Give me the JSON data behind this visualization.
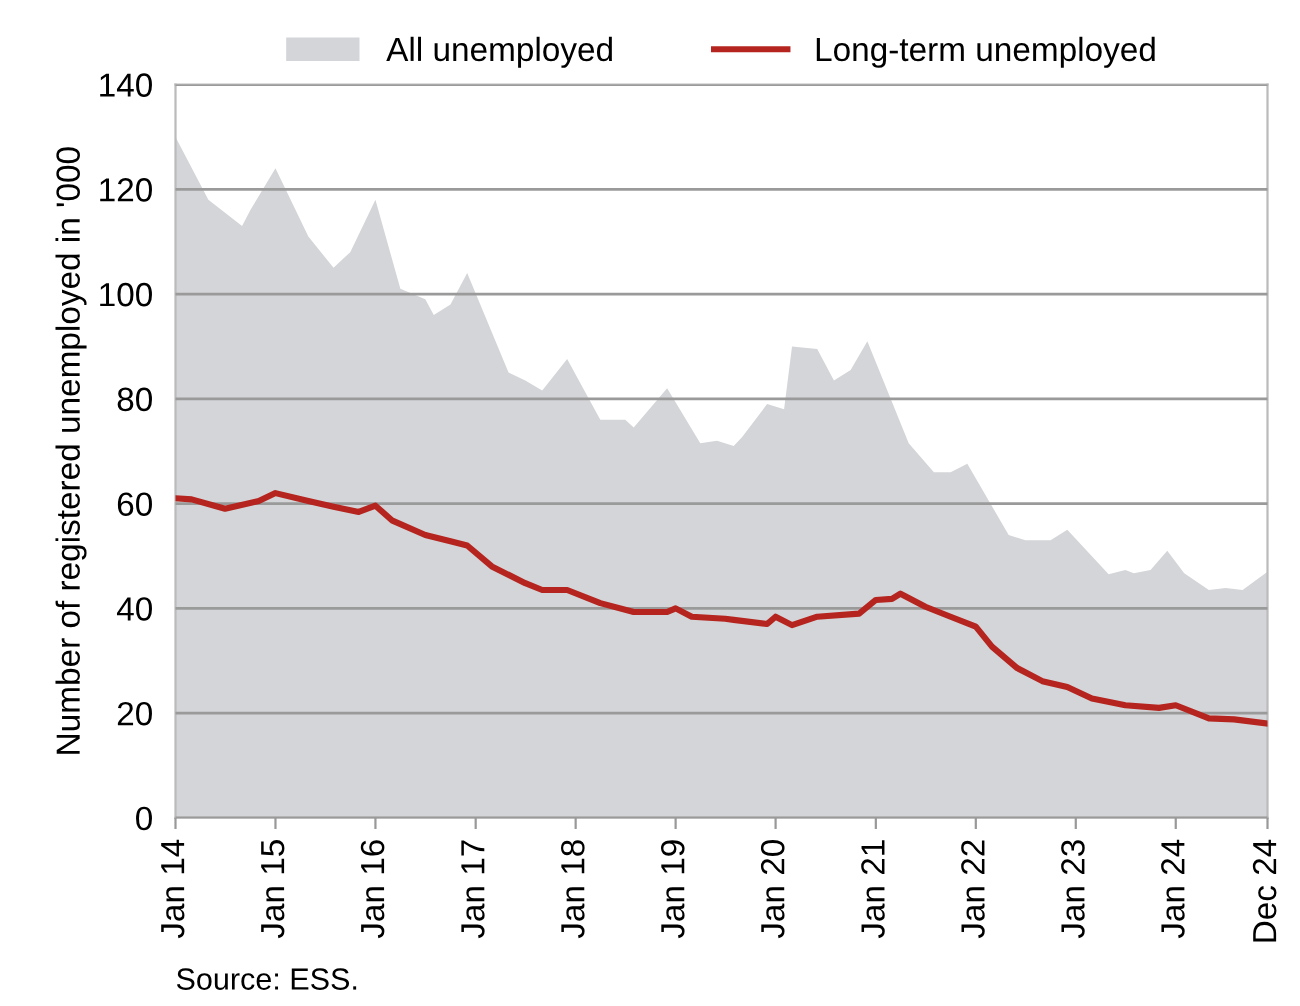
{
  "chart_data": {
    "type": "area",
    "ylabel": "Number of registered unemployed in '000",
    "series": [
      {
        "name": "All unemployed",
        "color": "#d4d5d8",
        "x": [
          "2014-01",
          "2014-05",
          "2014-09",
          "2014-10",
          "2015-01",
          "2015-05",
          "2015-08",
          "2015-10",
          "2016-01",
          "2016-04",
          "2016-07",
          "2016-08",
          "2016-10",
          "2016-12",
          "2017-05",
          "2017-07",
          "2017-09",
          "2017-12",
          "2018-04",
          "2018-07",
          "2018-08",
          "2018-12",
          "2019-04",
          "2019-06",
          "2019-08",
          "2019-09",
          "2019-12",
          "2020-02",
          "2020-03",
          "2020-06",
          "2020-08",
          "2020-10",
          "2020-12",
          "2021-05",
          "2021-08",
          "2021-10",
          "2021-12",
          "2022-05",
          "2022-07",
          "2022-10",
          "2022-12",
          "2023-05",
          "2023-07",
          "2023-08",
          "2023-10",
          "2023-12",
          "2024-02",
          "2024-05",
          "2024-07",
          "2024-09",
          "2024-12"
        ],
        "values": [
          130,
          118,
          113,
          116,
          124,
          111,
          105,
          108,
          118,
          101,
          99,
          96,
          98,
          104,
          85,
          83.5,
          81.6,
          87.6,
          76,
          76,
          74.5,
          82,
          71.5,
          72,
          71,
          72.7,
          79,
          78,
          90,
          89.5,
          83.5,
          85.5,
          91,
          71.5,
          66,
          66,
          67.6,
          54,
          53,
          53,
          55,
          46.5,
          47.3,
          46.7,
          47.3,
          51,
          46.7,
          43.5,
          43.9,
          43.5,
          47
        ]
      },
      {
        "name": "Long-term unemployed",
        "type": "line",
        "color": "#b5241e",
        "x": [
          "2014-01",
          "2014-03",
          "2014-07",
          "2014-11",
          "2015-01",
          "2015-05",
          "2015-08",
          "2015-11",
          "2016-01",
          "2016-03",
          "2016-07",
          "2016-10",
          "2016-12",
          "2017-03",
          "2017-07",
          "2017-09",
          "2017-12",
          "2018-04",
          "2018-08",
          "2018-12",
          "2019-01",
          "2019-03",
          "2019-07",
          "2019-08",
          "2019-12",
          "2020-01",
          "2020-03",
          "2020-06",
          "2020-11",
          "2021-01",
          "2021-03",
          "2021-04",
          "2021-07",
          "2021-10",
          "2022-01",
          "2022-03",
          "2022-06",
          "2022-09",
          "2022-12",
          "2023-03",
          "2023-07",
          "2023-11",
          "2024-01",
          "2024-05",
          "2024-08",
          "2024-12"
        ],
        "values": [
          61,
          60.8,
          59,
          60.5,
          62,
          60.5,
          59.4,
          58.4,
          59.6,
          56.8,
          54,
          52.8,
          52,
          48,
          44.8,
          43.5,
          43.5,
          41,
          39.3,
          39.3,
          40,
          38.4,
          38,
          37.8,
          37,
          38.4,
          36.8,
          38.4,
          39,
          41.6,
          41.8,
          42.8,
          40.3,
          38.4,
          36.5,
          32.7,
          28.6,
          26.1,
          25,
          22.8,
          21.5,
          21,
          21.5,
          19,
          18.8,
          18
        ]
      }
    ],
    "xlim": [
      "2014-01",
      "2024-12"
    ],
    "xticks": [
      {
        "value": "2014-01",
        "label": "Jan 14"
      },
      {
        "value": "2015-01",
        "label": "Jan 15"
      },
      {
        "value": "2016-01",
        "label": "Jan 16"
      },
      {
        "value": "2017-01",
        "label": "Jan 17"
      },
      {
        "value": "2018-01",
        "label": "Jan 18"
      },
      {
        "value": "2019-01",
        "label": "Jan 19"
      },
      {
        "value": "2020-01",
        "label": "Jan 20"
      },
      {
        "value": "2021-01",
        "label": "Jan 21"
      },
      {
        "value": "2022-01",
        "label": "Jan 22"
      },
      {
        "value": "2023-01",
        "label": "Jan 23"
      },
      {
        "value": "2024-01",
        "label": "Jan 24"
      },
      {
        "value": "2024-12",
        "label": "Dec 24"
      }
    ],
    "ylim": [
      0,
      140
    ],
    "yticks": [
      0,
      20,
      40,
      60,
      80,
      100,
      120,
      140
    ],
    "grid": "y",
    "legend": "top",
    "annotations": [
      "Source: ESS."
    ]
  }
}
